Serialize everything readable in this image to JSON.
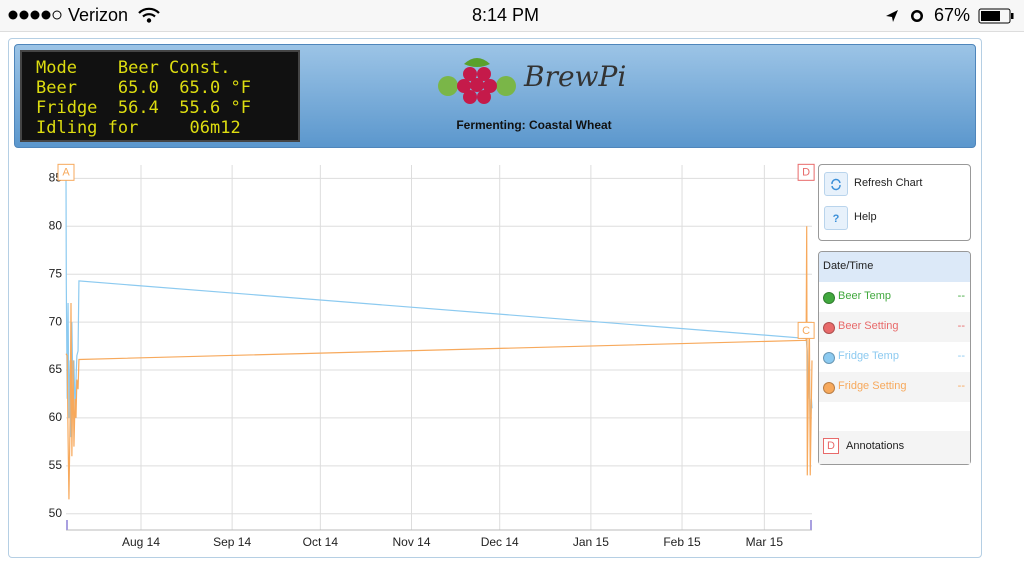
{
  "status_bar": {
    "carrier": "Verizon",
    "time": "8:14 PM",
    "battery": "67%"
  },
  "lcd": {
    "lines": [
      "Mode    Beer Const.",
      "Beer    65.0  65.0 °F",
      "Fridge  56.4  55.6 °F",
      "Idling for     06m12"
    ]
  },
  "header": {
    "logo": "BrewPi",
    "subtitle": "Fermenting: Coastal Wheat"
  },
  "controls": {
    "buttons": [
      {
        "label": "Refresh Chart"
      },
      {
        "icon": "?",
        "label": "Help"
      }
    ]
  },
  "legend": {
    "title": "Date/Time",
    "annotations_label": "Annotations"
  },
  "chart_data": {
    "type": "line",
    "xlim": [
      -25.5,
      228.2
    ],
    "ylim": [
      48.3,
      86.4
    ],
    "xticks": [
      {
        "value": 0,
        "label": "Aug 14"
      },
      {
        "value": 31,
        "label": "Sep 14"
      },
      {
        "value": 61,
        "label": "Oct 14"
      },
      {
        "value": 92,
        "label": "Nov 14"
      },
      {
        "value": 122,
        "label": "Dec 14"
      },
      {
        "value": 153,
        "label": "Jan 15"
      },
      {
        "value": 184,
        "label": "Feb 15"
      },
      {
        "value": 212,
        "label": "Mar 15"
      }
    ],
    "yticks": [
      50,
      55,
      60,
      65,
      70,
      75,
      80,
      85
    ],
    "grid": true,
    "series": [
      {
        "name": "Beer Temp",
        "color": "#41a83e",
        "current": "--",
        "x": [],
        "values": []
      },
      {
        "name": "Beer Setting",
        "color": "#e86a6a",
        "current": "--",
        "x": [],
        "values": []
      },
      {
        "name": "Fridge Temp",
        "color": "#8ccaf0",
        "current": "--",
        "x": [
          -25.5,
          -25.4,
          -25.1,
          -24.8,
          -24.5,
          -24.1,
          -23.8,
          -23.5,
          -23.1,
          -22.8,
          -22.4,
          -22.1,
          -21.8,
          -21.4,
          -21.1,
          226.2,
          226.6,
          226.9,
          227.3,
          227.6,
          228.0,
          228.2
        ],
        "values": [
          85.5,
          74,
          62,
          72,
          60,
          66,
          58,
          70,
          62,
          66,
          60,
          64,
          66.5,
          67,
          74.3,
          68.3,
          67,
          62,
          66,
          58,
          62,
          61
        ]
      },
      {
        "name": "Fridge Setting",
        "color": "#f7a95c",
        "current": "--",
        "x": [
          -25.5,
          -25.1,
          -24.8,
          -24.5,
          -24.1,
          -23.8,
          -23.5,
          -23.1,
          -22.8,
          -22.4,
          -22.1,
          -21.8,
          -21.4,
          -21.1,
          226.2,
          226.4,
          226.6,
          226.9,
          227.3,
          227.6,
          227.9,
          228.2
        ],
        "values": [
          66.7,
          66.5,
          58,
          51.5,
          60,
          72,
          56,
          66,
          57,
          62,
          60,
          64,
          63,
          66.1,
          68.1,
          80,
          54,
          62,
          70,
          54,
          60,
          66
        ]
      }
    ],
    "annotations": [
      {
        "label": "A",
        "x": -25.5,
        "y": 84.8,
        "color": "#f7a95c"
      },
      {
        "label": "D",
        "x": 226.2,
        "y": 84.8,
        "color": "#e86a6a"
      },
      {
        "label": "C",
        "x": 226.2,
        "y": 68.3,
        "color": "#f7a95c"
      }
    ]
  }
}
